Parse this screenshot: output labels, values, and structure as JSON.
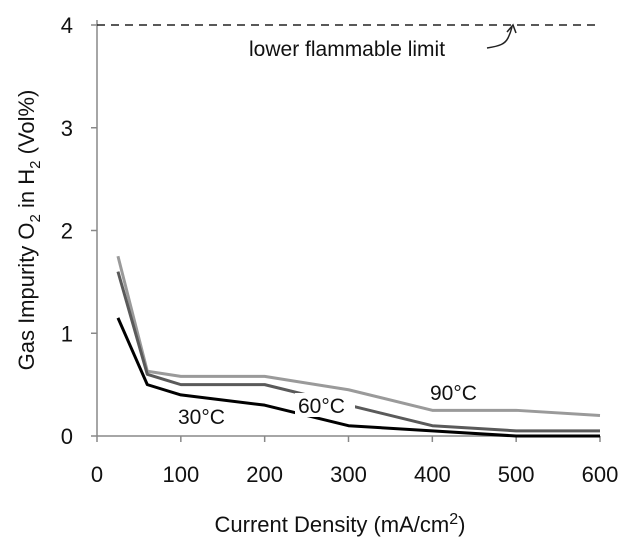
{
  "chart_data": {
    "type": "line",
    "xlabel": "Current Density (mA/cm2)",
    "ylabel": "Gas Impurity O2 in H2 (Vol%)",
    "xlim": [
      0,
      600
    ],
    "ylim": [
      0,
      4
    ],
    "xticks": [
      "0",
      "100",
      "200",
      "300",
      "400",
      "500",
      "600"
    ],
    "yticks": [
      "0",
      "1",
      "2",
      "3",
      "4"
    ],
    "grid": false,
    "series": [
      {
        "name": "30°C",
        "color": "#000000",
        "x": [
          25,
          60,
          100,
          200,
          300,
          400,
          500,
          600
        ],
        "y": [
          1.15,
          0.5,
          0.4,
          0.3,
          0.1,
          0.05,
          0.0,
          0.0
        ]
      },
      {
        "name": "60°C",
        "color": "#5a5a5a",
        "x": [
          25,
          60,
          100,
          200,
          300,
          400,
          500,
          600
        ],
        "y": [
          1.6,
          0.6,
          0.5,
          0.5,
          0.3,
          0.1,
          0.05,
          0.05
        ]
      },
      {
        "name": "90°C",
        "color": "#9a9a9a",
        "x": [
          25,
          60,
          100,
          200,
          300,
          400,
          500,
          600
        ],
        "y": [
          1.75,
          0.63,
          0.58,
          0.58,
          0.45,
          0.25,
          0.25,
          0.2
        ]
      }
    ],
    "reference_line": {
      "y": 4,
      "style": "dashed",
      "label": "lower flammable limit"
    }
  }
}
